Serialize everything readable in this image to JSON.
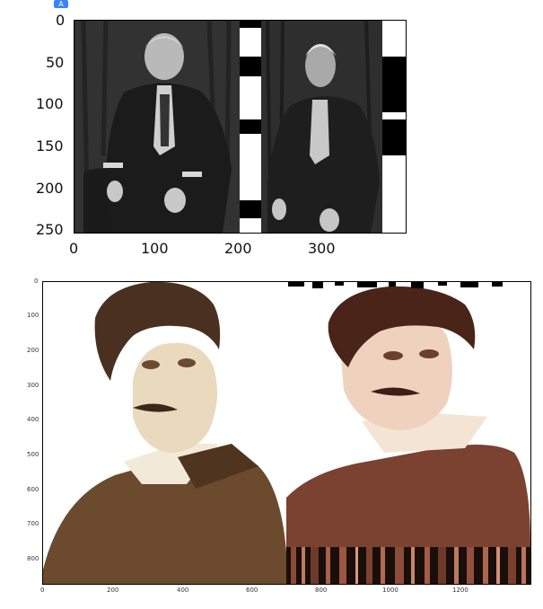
{
  "badge": {
    "icon": "translate-icon",
    "text": "A"
  },
  "figure1": {
    "yticks": [
      "0",
      "50",
      "100",
      "150",
      "200",
      "250"
    ],
    "xticks": [
      "0",
      "100",
      "200",
      "300"
    ],
    "subject": "Elderly man seated in chair, black and white photograph, original and distorted copy"
  },
  "figure2": {
    "yticks": [
      "0",
      "100",
      "200",
      "300",
      "400",
      "500",
      "600",
      "700",
      "800"
    ],
    "xticks": [
      "0",
      "200",
      "400",
      "600",
      "800",
      "1000",
      "1200"
    ],
    "subject": "Sepia portrait of a man with mustache, original and color-shifted distorted copy"
  },
  "colors": {
    "bw_dark": "#1a1a1a",
    "bw_mid": "#555555",
    "sepia_bg": "#f7efdd",
    "sepia_coat": "#6a4a2c",
    "red_coat": "#7a3f30"
  }
}
